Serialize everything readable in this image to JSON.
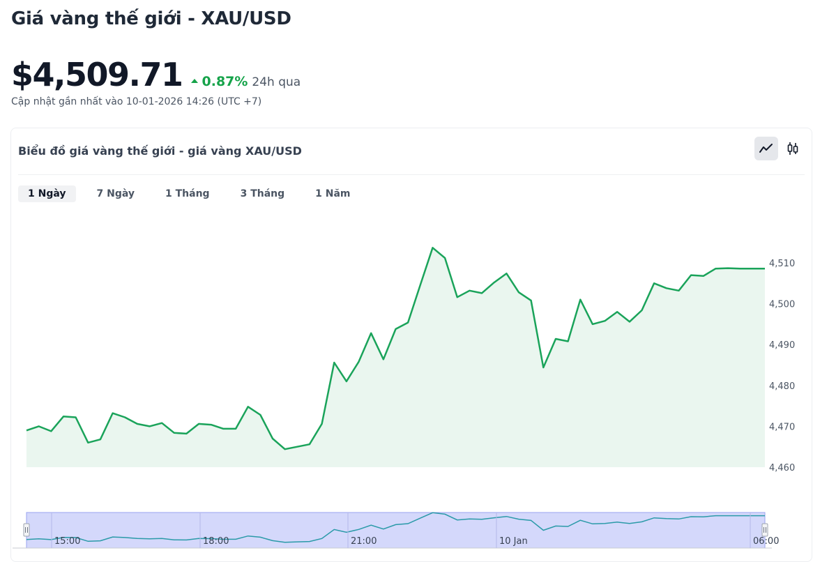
{
  "header": {
    "title": "Giá vàng thế giới - XAU/USD",
    "price": "$4,509.71",
    "change_pct": "0.87%",
    "change_period": "24h qua",
    "updated": "Cập nhật gần nhất vào 10-01-2026 14:26 (UTC +7)"
  },
  "card": {
    "title": "Biểu đồ giá vàng thế giới - giá vàng XAU/USD",
    "toggles": [
      {
        "name": "line-chart-icon",
        "active": true
      },
      {
        "name": "candlestick-icon",
        "active": false
      }
    ],
    "tabs": [
      {
        "label": "1 Ngày",
        "active": true
      },
      {
        "label": "7 Ngày",
        "active": false
      },
      {
        "label": "1 Tháng",
        "active": false
      },
      {
        "label": "3 Tháng",
        "active": false
      },
      {
        "label": "1 Năm",
        "active": false
      }
    ]
  },
  "colors": {
    "line": "#1aa35a",
    "area": "#eaf6ef",
    "navigator_fill": "#d4d8fb",
    "navigator_border": "#9aa3ef",
    "navigator_line": "#2a9aa8"
  },
  "chart_data": {
    "type": "area",
    "series": [
      {
        "values": [
          4469.0,
          4470.0,
          4468.8,
          4472.4,
          4472.2,
          4466.0,
          4466.8,
          4473.2,
          4472.2,
          4470.6,
          4470.0,
          4470.8,
          4468.4,
          4468.2,
          4470.6,
          4470.4,
          4469.4,
          4469.4,
          4474.8,
          4472.8,
          4467.0,
          4464.4,
          4465.0,
          4465.6,
          4470.6,
          4485.6,
          4481.0,
          4485.8,
          4492.8,
          4486.4,
          4493.8,
          4495.4,
          4504.6,
          4513.7,
          4511.2,
          4501.6,
          4503.2,
          4502.6,
          4505.2,
          4507.4,
          4502.8,
          4500.8,
          4484.4,
          4491.4,
          4490.8,
          4501.0,
          4495.0,
          4495.8,
          4498.0,
          4495.6,
          4498.4,
          4505.0,
          4503.8,
          4503.2,
          4507.0,
          4506.8,
          4508.6,
          4508.7,
          4508.6,
          4508.6,
          4508.6
        ]
      }
    ],
    "y_ticks": [
      "4,460",
      "4,470",
      "4,480",
      "4,490",
      "4,500",
      "4,510"
    ],
    "ylim": [
      4460,
      4515
    ],
    "navigator_ticks": [
      "15:00",
      "18:00",
      "21:00",
      "10 Jan",
      "06:00"
    ],
    "grid": false
  }
}
